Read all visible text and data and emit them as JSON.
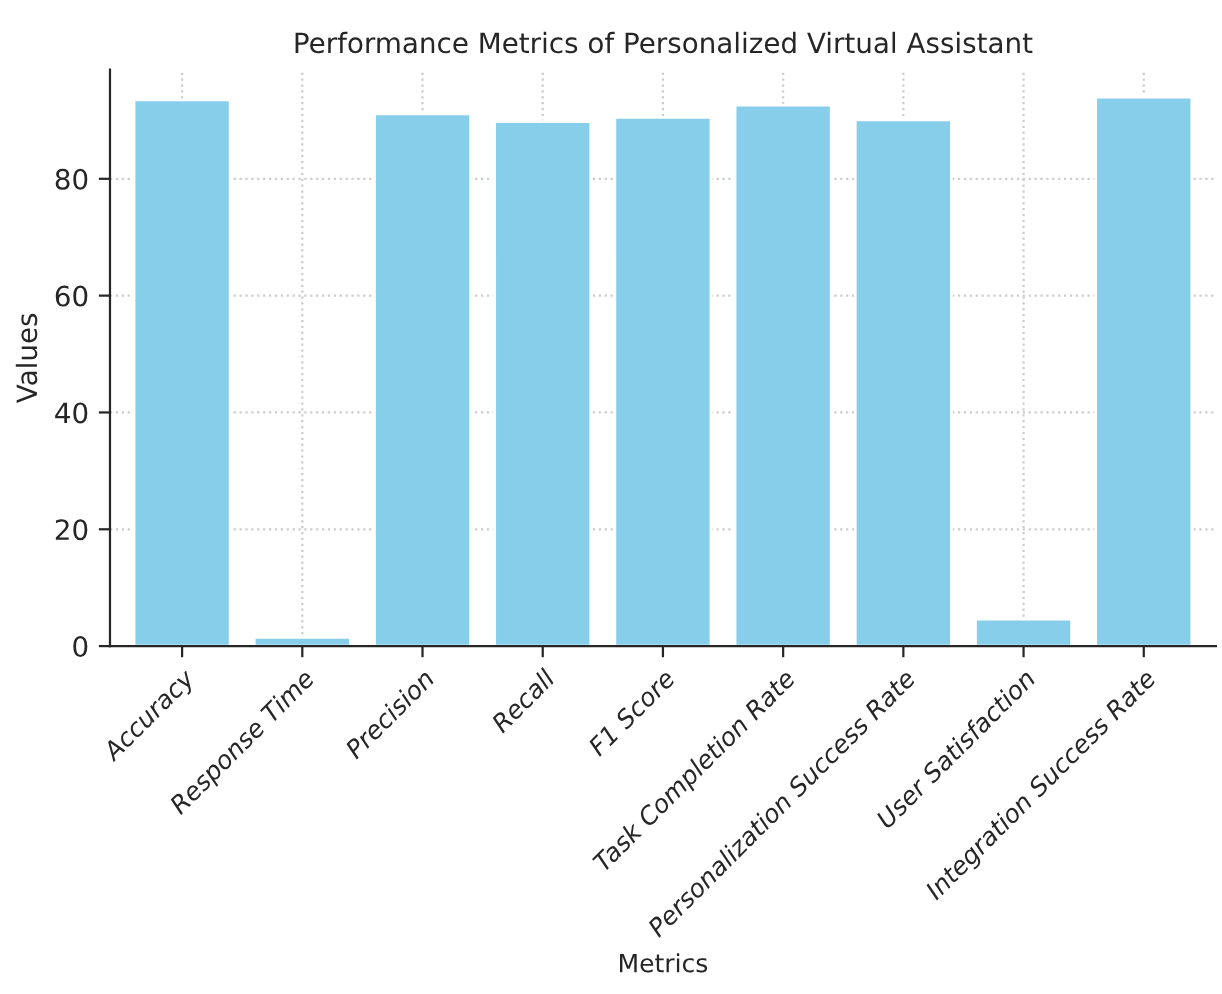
{
  "chart_data": {
    "type": "bar",
    "title": "Performance Metrics of Personalized Virtual Assistant",
    "xlabel": "Metrics",
    "ylabel": "Values",
    "categories": [
      "Accuracy",
      "Response Time",
      "Precision",
      "Recall",
      "F1 Score",
      "Task Completion Rate",
      "Personalization Success Rate",
      "User Satisfaction",
      "Integration Success Rate"
    ],
    "values": [
      93.5,
      1.5,
      91.1,
      89.8,
      90.5,
      92.6,
      90.1,
      4.6,
      94.0
    ],
    "color": "#87ceeb",
    "ylim": [
      0,
      98.7
    ],
    "yticks": [
      0,
      20,
      40,
      60,
      80
    ],
    "grid": true
  }
}
